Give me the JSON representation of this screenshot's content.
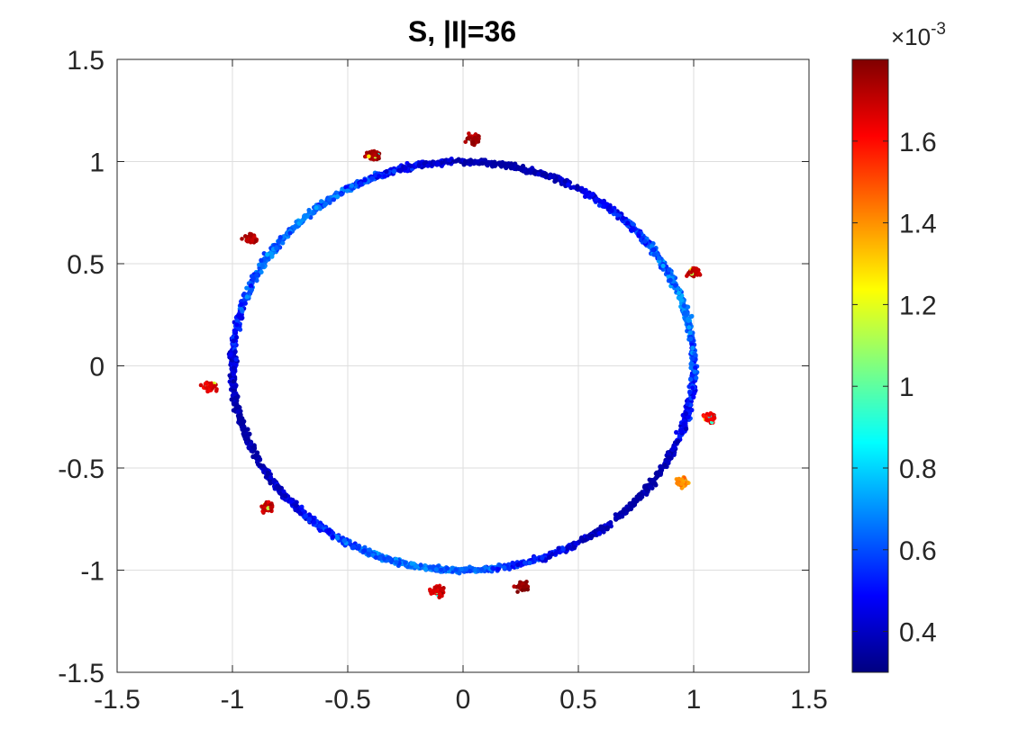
{
  "chart_data": {
    "type": "scatter",
    "title": "S, |I|=36",
    "xlim": [
      -1.5,
      1.5
    ],
    "ylim": [
      -1.5,
      1.5
    ],
    "xticks": [
      -1.5,
      -1,
      -0.5,
      0,
      0.5,
      1,
      1.5
    ],
    "yticks": [
      -1.5,
      -1,
      -0.5,
      0,
      0.5,
      1,
      1.5
    ],
    "xtick_labels": [
      "-1.5",
      "-1",
      "-0.5",
      "0",
      "0.5",
      "1",
      "1.5"
    ],
    "ytick_labels": [
      "-1.5",
      "-1",
      "-0.5",
      "0",
      "0.5",
      "1",
      "1.5"
    ],
    "grid": true,
    "colormap": "jet",
    "colorbar": {
      "clim": [
        0.3,
        1.8
      ],
      "ticks": [
        0.4,
        0.6,
        0.8,
        1.0,
        1.2,
        1.4,
        1.6
      ],
      "tick_labels": [
        "0.4",
        "0.6",
        "0.8",
        "1",
        "1.2",
        "1.4",
        "1.6"
      ],
      "exponent_label_prefix": "×10",
      "exponent_label_power": "-3"
    },
    "ring": {
      "center": [
        0,
        0
      ],
      "radius": 1.0,
      "color_range": [
        0.35,
        0.75
      ]
    },
    "clusters": [
      {
        "x": 0.05,
        "y": 1.11,
        "value": 1.75
      },
      {
        "x": -0.39,
        "y": 1.03,
        "value": 1.75
      },
      {
        "x": -0.92,
        "y": 0.62,
        "value": 1.72
      },
      {
        "x": -1.1,
        "y": -0.1,
        "value": 1.65
      },
      {
        "x": -0.85,
        "y": -0.69,
        "value": 1.7
      },
      {
        "x": -0.11,
        "y": -1.1,
        "value": 1.68
      },
      {
        "x": 0.26,
        "y": -1.08,
        "value": 1.78
      },
      {
        "x": 0.95,
        "y": -0.57,
        "value": 1.4
      },
      {
        "x": 1.07,
        "y": -0.25,
        "value": 1.62
      },
      {
        "x": 1.0,
        "y": 0.46,
        "value": 1.7
      }
    ]
  }
}
